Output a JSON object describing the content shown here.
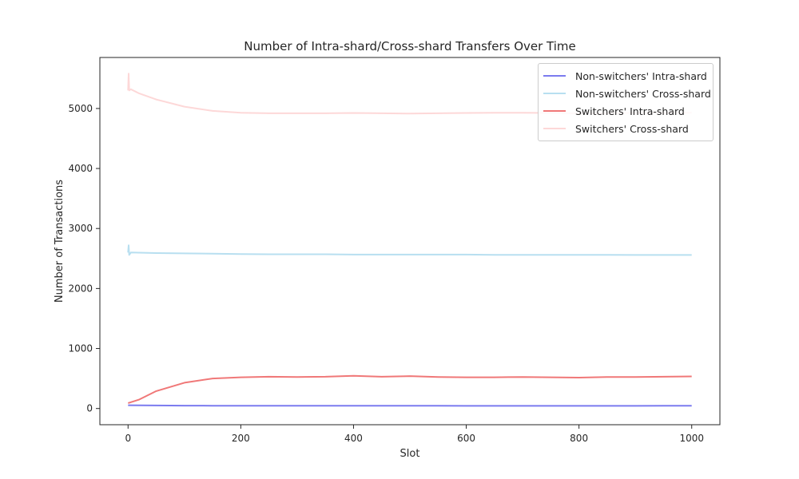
{
  "chart_data": {
    "type": "line",
    "title": "Number of Intra-shard/Cross-shard Transfers Over Time",
    "xlabel": "Slot",
    "ylabel": "Number of Transactions",
    "xlim": [
      -50,
      1050
    ],
    "ylim": [
      -270,
      5850
    ],
    "xticks": [
      0,
      200,
      400,
      600,
      800,
      1000
    ],
    "yticks": [
      0,
      1000,
      2000,
      3000,
      4000,
      5000
    ],
    "grid": false,
    "legend_position": "top-right",
    "series": [
      {
        "name": "Non-switchers' Intra-shard",
        "color": "#7b7bef",
        "x": [
          0,
          50,
          100,
          150,
          200,
          250,
          300,
          350,
          400,
          450,
          500,
          550,
          600,
          650,
          700,
          750,
          800,
          850,
          900,
          950,
          1000
        ],
        "values": [
          55,
          50,
          48,
          47,
          46,
          45,
          45,
          45,
          45,
          45,
          45,
          45,
          44,
          44,
          44,
          44,
          44,
          44,
          44,
          45,
          46
        ]
      },
      {
        "name": "Non-switchers' Cross-shard",
        "color": "#b8dff0",
        "x": [
          0,
          1,
          2,
          5,
          50,
          100,
          150,
          200,
          250,
          300,
          350,
          400,
          450,
          500,
          550,
          600,
          650,
          700,
          750,
          800,
          850,
          900,
          950,
          1000
        ],
        "values": [
          2600,
          2720,
          2560,
          2600,
          2590,
          2585,
          2580,
          2575,
          2570,
          2570,
          2570,
          2565,
          2565,
          2565,
          2565,
          2565,
          2560,
          2560,
          2560,
          2560,
          2560,
          2558,
          2558,
          2558
        ]
      },
      {
        "name": "Switchers' Intra-shard",
        "color": "#f07878",
        "x": [
          0,
          20,
          50,
          100,
          150,
          200,
          250,
          300,
          350,
          400,
          450,
          500,
          550,
          600,
          650,
          700,
          750,
          800,
          850,
          900,
          950,
          1000
        ],
        "values": [
          90,
          150,
          290,
          430,
          500,
          520,
          530,
          525,
          530,
          545,
          530,
          540,
          525,
          520,
          520,
          525,
          520,
          515,
          525,
          525,
          530,
          535
        ]
      },
      {
        "name": "Switchers' Cross-shard",
        "color": "#fdd8d8",
        "x": [
          0,
          1,
          2,
          5,
          20,
          50,
          100,
          150,
          200,
          250,
          300,
          350,
          400,
          450,
          500,
          550,
          600,
          650,
          700,
          750,
          800,
          850,
          900,
          950,
          1000
        ],
        "values": [
          5300,
          5580,
          5300,
          5320,
          5250,
          5150,
          5030,
          4960,
          4930,
          4920,
          4920,
          4920,
          4925,
          4920,
          4915,
          4920,
          4925,
          4930,
          4930,
          4925,
          4920,
          4920,
          4925,
          4925,
          4930
        ]
      }
    ]
  }
}
